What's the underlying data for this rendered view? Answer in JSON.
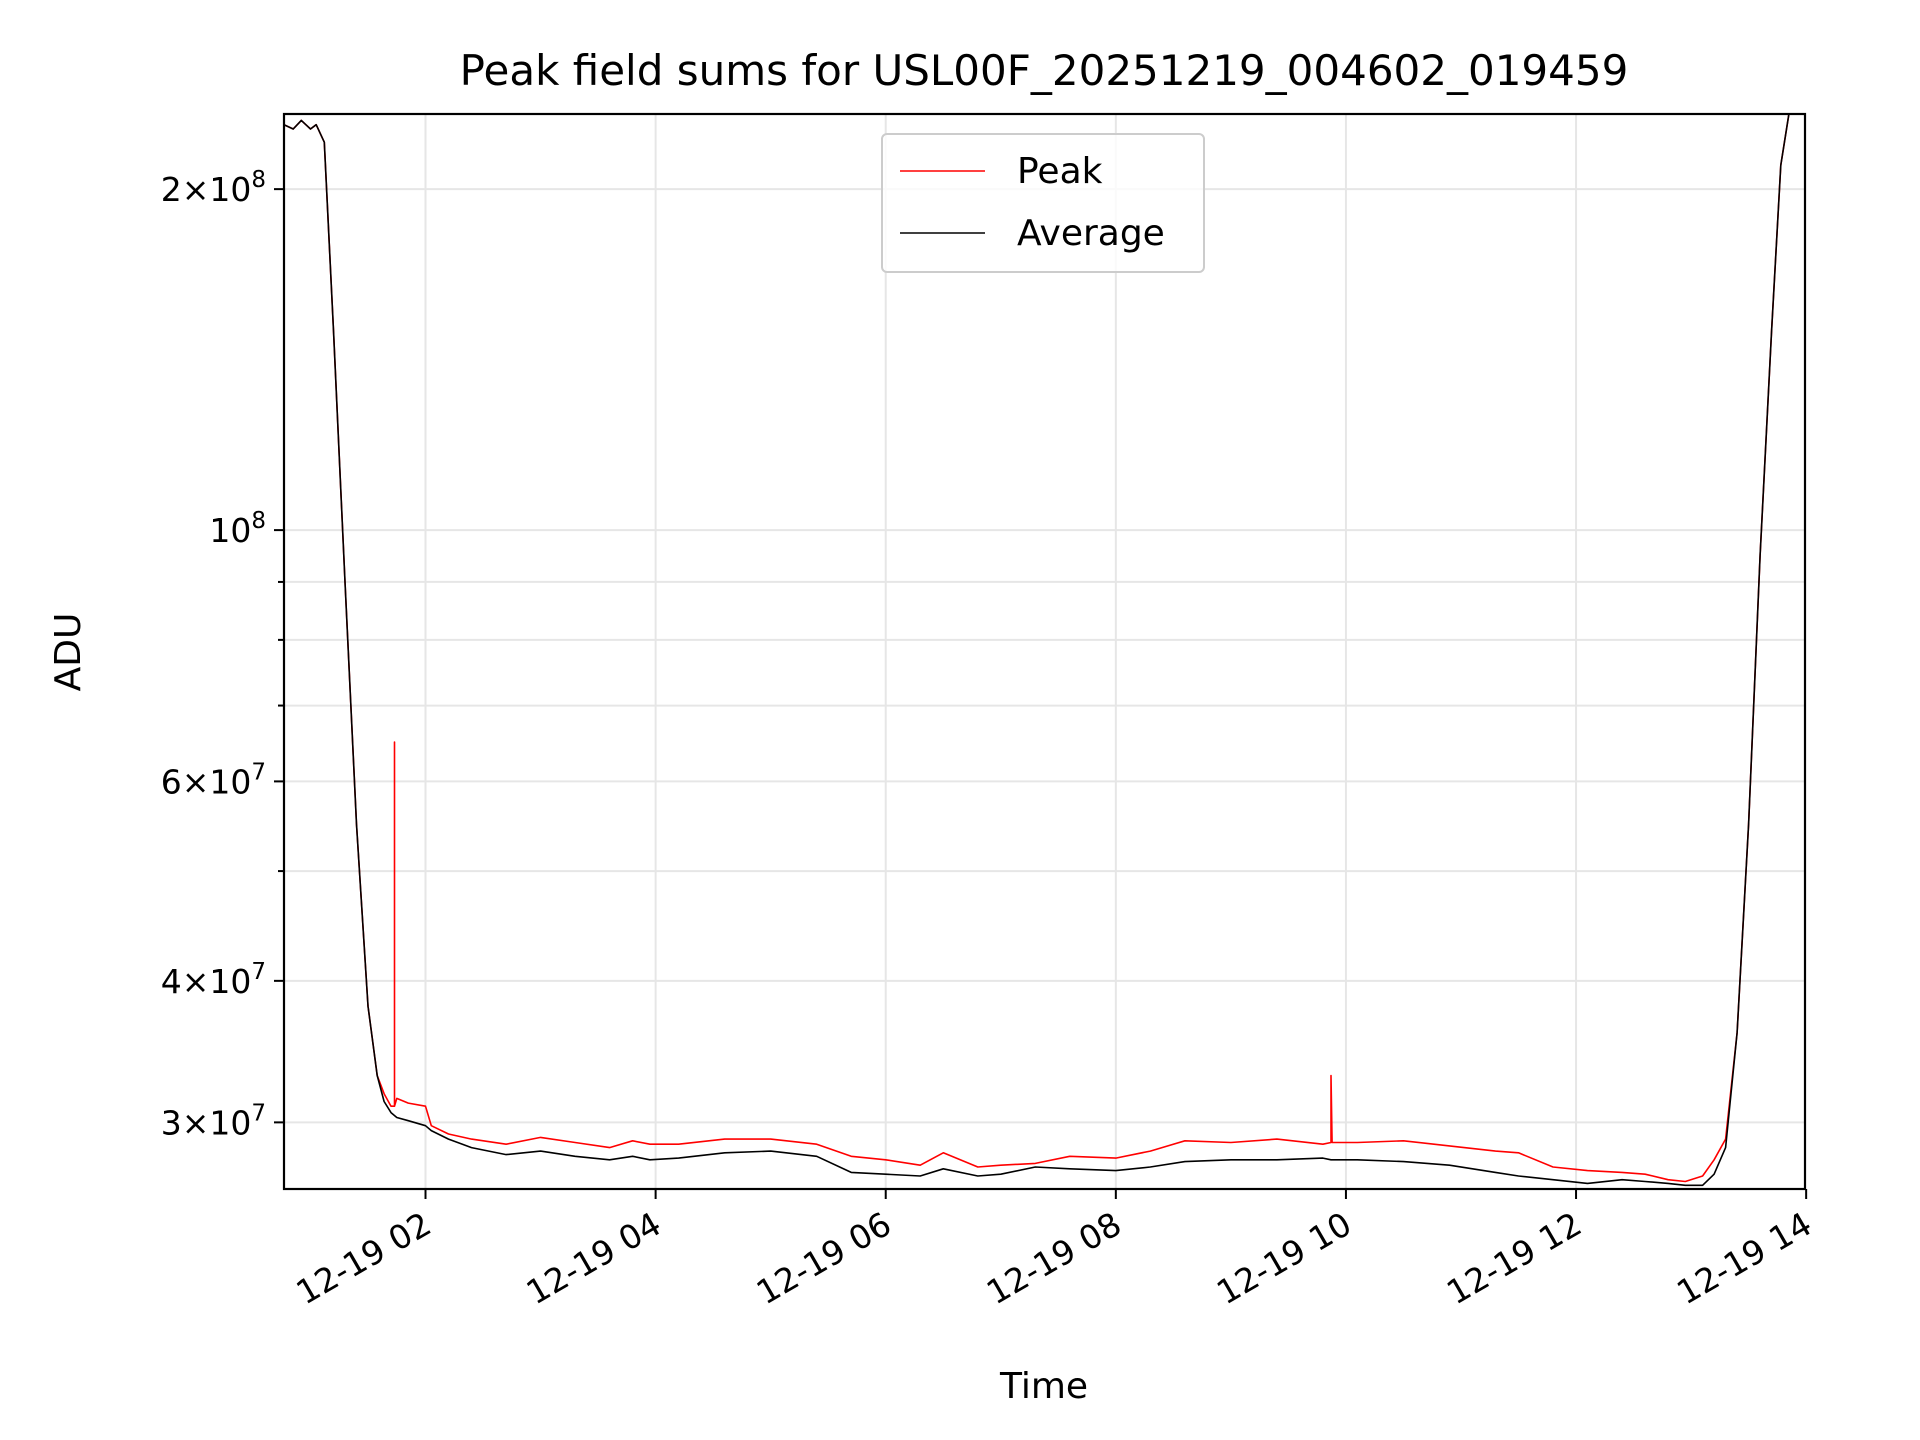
{
  "chart_data": {
    "type": "line",
    "title": "Peak field sums for USL00F_20251219_004602_019459",
    "xlabel": "Time",
    "ylabel": "ADU",
    "yscale": "log",
    "grid": true,
    "legend_position": "upper-center",
    "x_unit": "hours since 2025-12-19 00:00",
    "xlim": [
      0.77,
      13.99
    ],
    "ylim": [
      26200000,
      233000000
    ],
    "x_ticks": [
      {
        "value": 2,
        "label": "12-19 02"
      },
      {
        "value": 4,
        "label": "12-19 04"
      },
      {
        "value": 6,
        "label": "12-19 06"
      },
      {
        "value": 8,
        "label": "12-19 08"
      },
      {
        "value": 10,
        "label": "12-19 10"
      },
      {
        "value": 12,
        "label": "12-19 12"
      },
      {
        "value": 14,
        "label": "12-19 14"
      }
    ],
    "y_major_ticks": [
      {
        "value": 200000000,
        "mantissa": "2",
        "exponent": "8"
      },
      {
        "value": 100000000,
        "mantissa": "",
        "exponent": "8"
      },
      {
        "value": 60000000,
        "mantissa": "6",
        "exponent": "7"
      },
      {
        "value": 40000000,
        "mantissa": "4",
        "exponent": "7"
      },
      {
        "value": 30000000,
        "mantissa": "3",
        "exponent": "7"
      }
    ],
    "y_minor_ticks": [
      50000000,
      70000000,
      80000000,
      90000000
    ],
    "series": [
      {
        "name": "Peak",
        "color": "#ff0000",
        "x": [
          0.77,
          0.85,
          0.92,
          1.0,
          1.05,
          1.12,
          1.2,
          1.3,
          1.4,
          1.5,
          1.58,
          1.64,
          1.7,
          1.73,
          1.73,
          1.73,
          1.75,
          1.85,
          2.0,
          2.05,
          2.2,
          2.4,
          2.7,
          3.0,
          3.3,
          3.6,
          3.8,
          3.95,
          4.2,
          4.6,
          5.0,
          5.4,
          5.7,
          6.0,
          6.3,
          6.5,
          6.8,
          7.0,
          7.3,
          7.6,
          8.0,
          8.3,
          8.6,
          9.0,
          9.4,
          9.8,
          9.87,
          9.87,
          9.88,
          10.1,
          10.5,
          10.9,
          11.3,
          11.5,
          11.8,
          12.1,
          12.4,
          12.6,
          12.8,
          12.95,
          13.1,
          13.2,
          13.3,
          13.4,
          13.5,
          13.6,
          13.7,
          13.78,
          13.85,
          13.99
        ],
        "values": [
          228000000,
          226000000,
          230000000,
          226000000,
          228000000,
          220000000,
          150000000,
          90000000,
          55000000,
          38000000,
          33000000,
          31800000,
          31000000,
          31000000,
          65000000,
          31000000,
          31500000,
          31200000,
          31000000,
          29800000,
          29300000,
          29000000,
          28700000,
          29100000,
          28800000,
          28500000,
          28900000,
          28700000,
          28700000,
          29000000,
          29000000,
          28700000,
          28000000,
          27800000,
          27500000,
          28200000,
          27400000,
          27500000,
          27600000,
          28000000,
          27900000,
          28300000,
          28900000,
          28800000,
          29000000,
          28700000,
          28800000,
          33000000,
          28800000,
          28800000,
          28900000,
          28600000,
          28300000,
          28200000,
          27400000,
          27200000,
          27100000,
          27000000,
          26700000,
          26600000,
          26900000,
          27800000,
          29000000,
          36000000,
          55000000,
          95000000,
          150000000,
          210000000,
          233000000,
          233000000
        ]
      },
      {
        "name": "Average",
        "color": "#000000",
        "x": [
          0.77,
          0.85,
          0.92,
          1.0,
          1.05,
          1.12,
          1.2,
          1.3,
          1.4,
          1.5,
          1.58,
          1.64,
          1.7,
          1.75,
          1.85,
          2.0,
          2.05,
          2.2,
          2.4,
          2.7,
          3.0,
          3.3,
          3.6,
          3.8,
          3.95,
          4.2,
          4.6,
          5.0,
          5.4,
          5.7,
          6.0,
          6.3,
          6.5,
          6.8,
          7.0,
          7.3,
          7.6,
          8.0,
          8.3,
          8.6,
          9.0,
          9.4,
          9.8,
          9.87,
          10.1,
          10.5,
          10.9,
          11.3,
          11.5,
          11.8,
          12.1,
          12.4,
          12.6,
          12.8,
          12.95,
          13.1,
          13.2,
          13.3,
          13.4,
          13.5,
          13.6,
          13.7,
          13.78,
          13.85,
          13.99
        ],
        "values": [
          228000000,
          226000000,
          230000000,
          226000000,
          228000000,
          220000000,
          150000000,
          90000000,
          55000000,
          38000000,
          33000000,
          31300000,
          30600000,
          30300000,
          30100000,
          29800000,
          29500000,
          29000000,
          28500000,
          28100000,
          28300000,
          28000000,
          27800000,
          28000000,
          27800000,
          27900000,
          28200000,
          28300000,
          28000000,
          27100000,
          27000000,
          26900000,
          27300000,
          26900000,
          27000000,
          27400000,
          27300000,
          27200000,
          27400000,
          27700000,
          27800000,
          27800000,
          27900000,
          27800000,
          27800000,
          27700000,
          27500000,
          27100000,
          26900000,
          26700000,
          26500000,
          26700000,
          26600000,
          26500000,
          26400000,
          26400000,
          27000000,
          28500000,
          36000000,
          55000000,
          95000000,
          150000000,
          210000000,
          233000000,
          233000000
        ]
      }
    ],
    "colors": {
      "peak": "#ff0000",
      "average": "#000000",
      "grid": "#e6e6e6",
      "frame": "#000000"
    }
  }
}
